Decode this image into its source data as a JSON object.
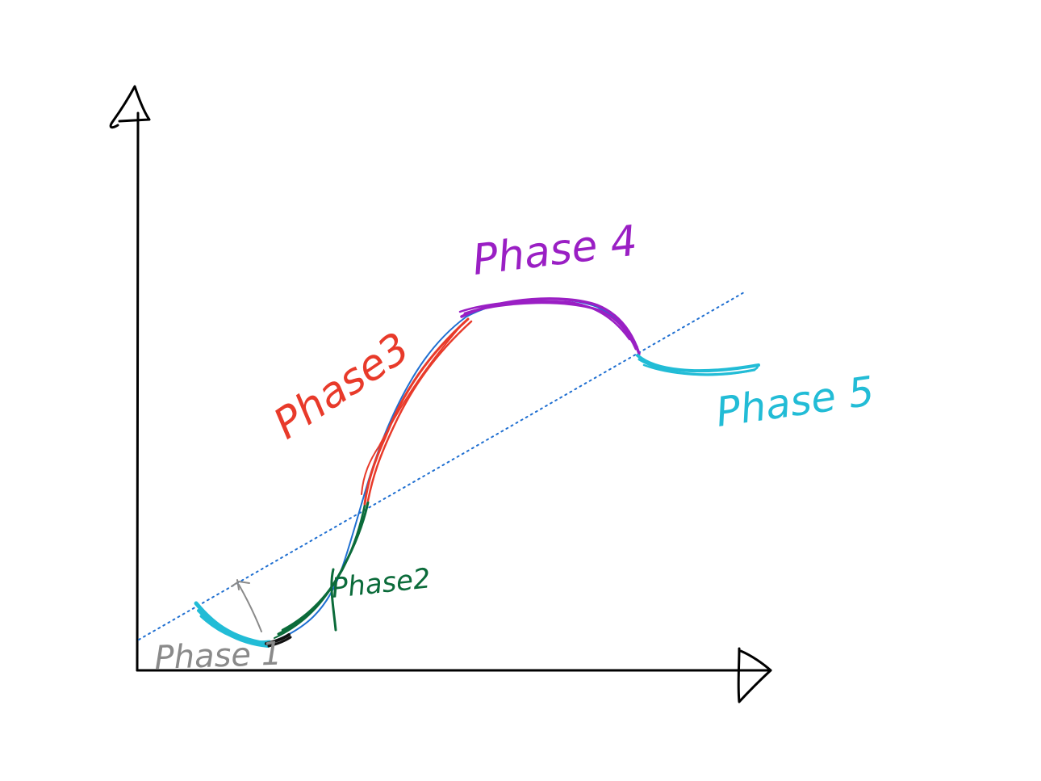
{
  "labels": {
    "phase1": "Phase 1",
    "phase2": "Phase2",
    "phase3": "Phase3",
    "phase4": "Phase 4",
    "phase5": "Phase 5"
  },
  "colors": {
    "axis": "#000000",
    "trend_line": "#1f6fd1",
    "base_curve": "#1f6fd1",
    "phase1": "#8a8a8a",
    "phase2": "#0b6b3a",
    "phase3": "#e83a2a",
    "phase4": "#9a1fc4",
    "phase5": "#22bcd6",
    "phase1_end": "#111111"
  }
}
